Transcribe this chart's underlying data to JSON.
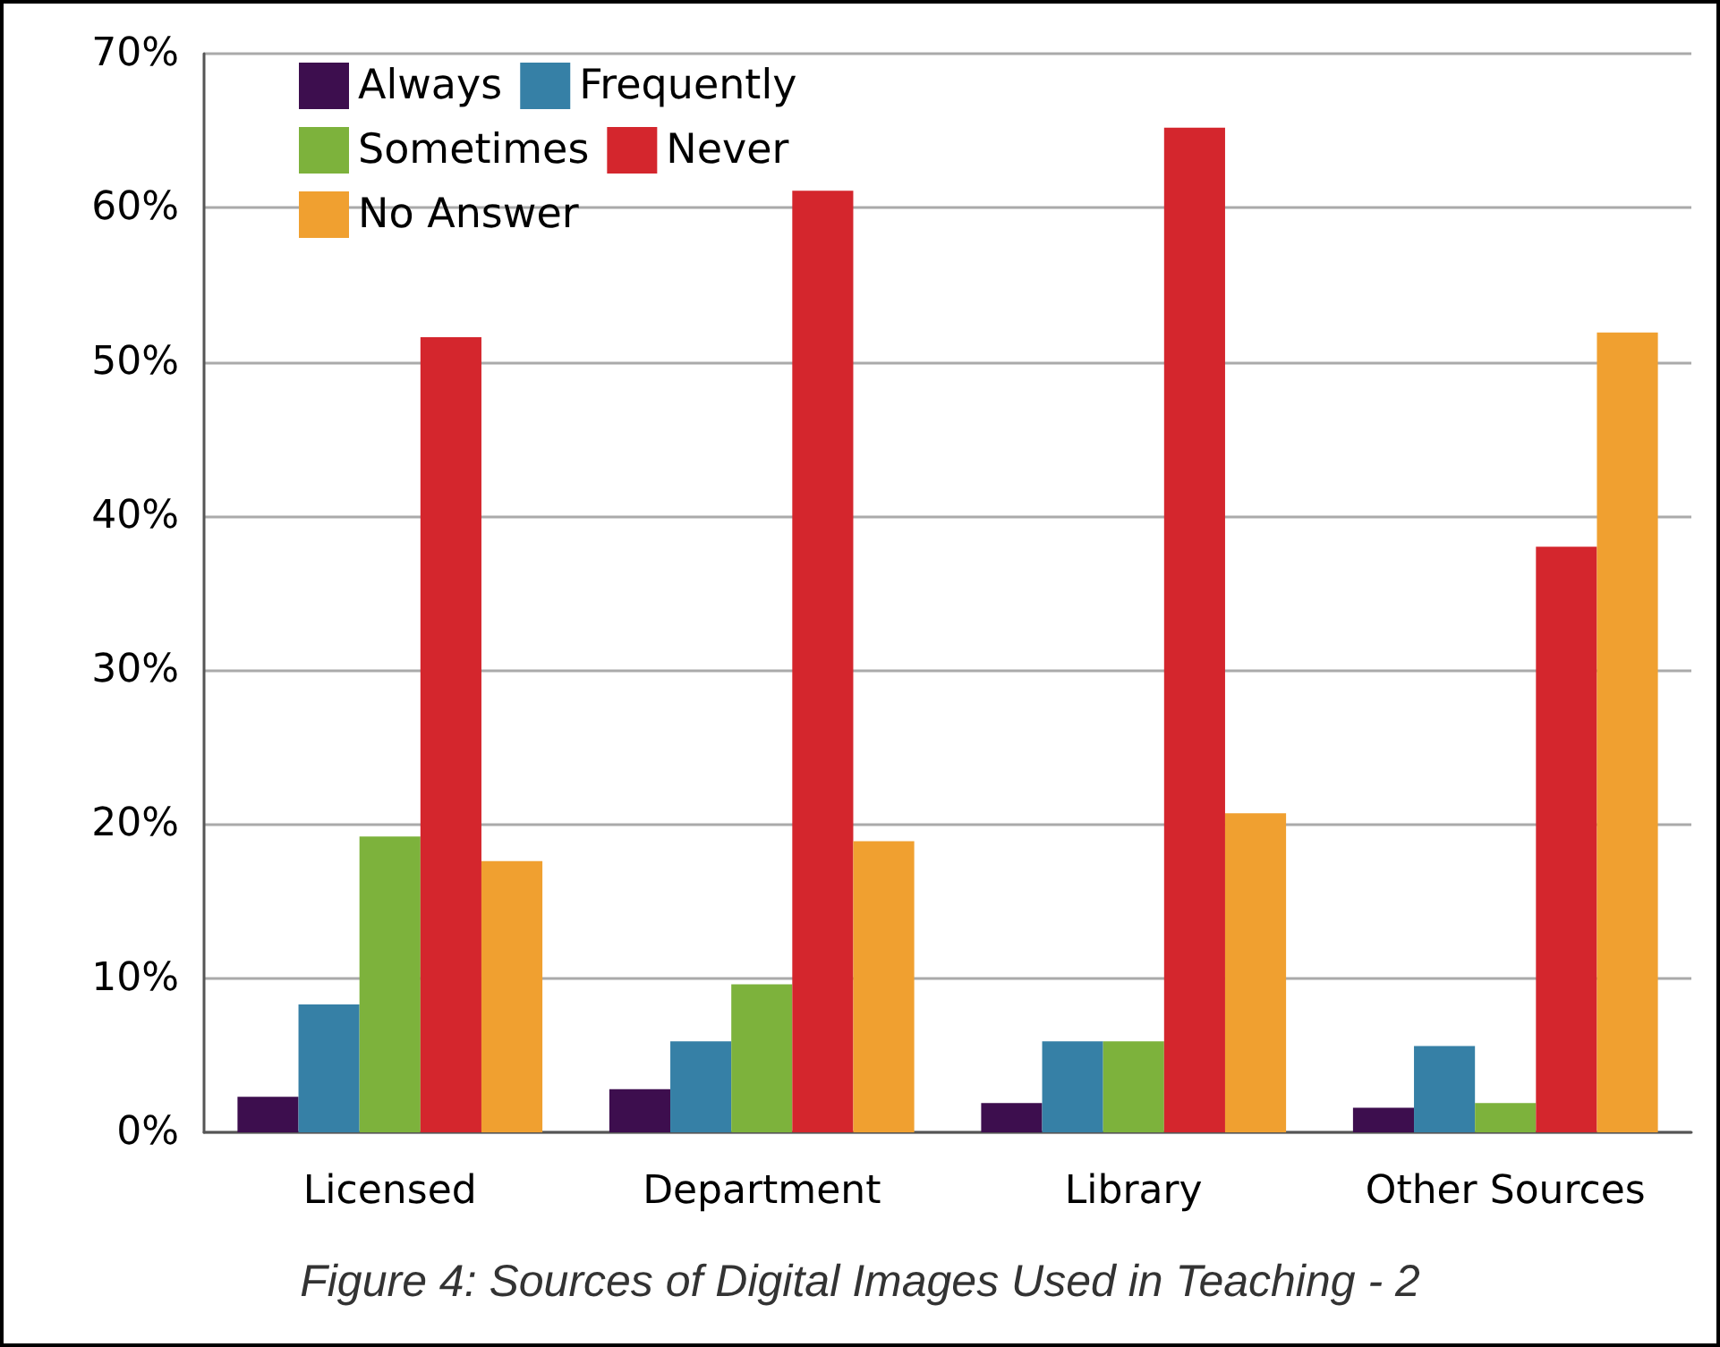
{
  "chart_data": {
    "type": "bar",
    "categories": [
      "Licensed",
      "Department",
      "Library",
      "Other Sources"
    ],
    "series": [
      {
        "name": "Always",
        "color": "#3d0e4e",
        "values": [
          2.3,
          2.8,
          1.9,
          1.6
        ]
      },
      {
        "name": "Frequently",
        "color": "#3680a6",
        "values": [
          8.3,
          5.9,
          5.9,
          5.6
        ]
      },
      {
        "name": "Sometimes",
        "color": "#7db23c",
        "values": [
          19.2,
          9.6,
          5.9,
          1.9
        ]
      },
      {
        "name": "Never",
        "color": "#d4262d",
        "values": [
          51.6,
          61.1,
          65.2,
          38.0
        ]
      },
      {
        "name": "No Answer",
        "color": "#f0a030",
        "values": [
          17.6,
          18.9,
          20.7,
          51.9
        ]
      }
    ],
    "ylim": [
      0,
      70
    ],
    "yticks": [
      {
        "value": 0,
        "label": "0%"
      },
      {
        "value": 10,
        "label": "10%"
      },
      {
        "value": 20,
        "label": "20%"
      },
      {
        "value": 30,
        "label": "30%"
      },
      {
        "value": 40,
        "label": "40%"
      },
      {
        "value": 50,
        "label": "50%"
      },
      {
        "value": 60,
        "label": "60%"
      },
      {
        "value": 70,
        "label": "70%"
      }
    ],
    "grid": "y",
    "legend": "top left",
    "annotations": [
      "Figure 4: Sources of Digital Images Used in Teaching - 2"
    ]
  }
}
